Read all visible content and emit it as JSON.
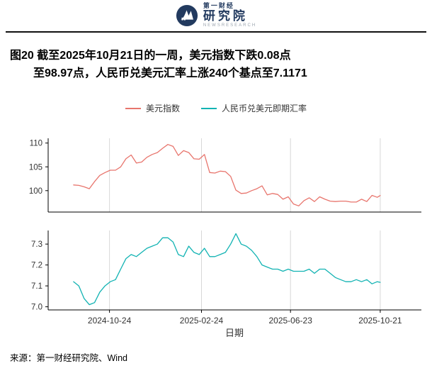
{
  "header": {
    "brand_top": "第一财经",
    "brand_main": "研究院",
    "brand_sub": "NEWSRESEARCH"
  },
  "title": {
    "line1": "图20  截至2025年10月21日的一周，美元指数下跌0.08点",
    "line2": "至98.97点，人民币兑美元汇率上涨240个基点至7.1171"
  },
  "legend": [
    {
      "label": "美元指数",
      "color": "#e8756d"
    },
    {
      "label": "人民币兑美元即期汇率",
      "color": "#12b3b3"
    }
  ],
  "footer": {
    "source": "来源：第一财经研究院、Wind"
  },
  "chart_data": {
    "type": "line",
    "title": "截至2025年10月21日的一周，美元指数下跌0.08点至98.97点，人民币兑美元汇率上涨240个基点至7.1171",
    "xlabel": "日期",
    "x_ticks": [
      "2024-10-24",
      "2025-02-24",
      "2025-06-23",
      "2025-10-21"
    ],
    "x_range": [
      "2024-08-03",
      "2025-12-15"
    ],
    "grid_color": "#d8d8d8",
    "axis_color": "#000000",
    "dates": [
      "2024-09-06",
      "2024-09-13",
      "2024-09-20",
      "2024-09-27",
      "2024-10-04",
      "2024-10-11",
      "2024-10-18",
      "2024-10-25",
      "2024-11-01",
      "2024-11-08",
      "2024-11-15",
      "2024-11-22",
      "2024-11-29",
      "2024-12-06",
      "2024-12-13",
      "2024-12-20",
      "2024-12-27",
      "2025-01-03",
      "2025-01-10",
      "2025-01-17",
      "2025-01-24",
      "2025-01-31",
      "2025-02-07",
      "2025-02-14",
      "2025-02-21",
      "2025-02-28",
      "2025-03-07",
      "2025-03-14",
      "2025-03-21",
      "2025-03-28",
      "2025-04-04",
      "2025-04-11",
      "2025-04-18",
      "2025-04-25",
      "2025-05-02",
      "2025-05-09",
      "2025-05-16",
      "2025-05-23",
      "2025-05-30",
      "2025-06-06",
      "2025-06-13",
      "2025-06-20",
      "2025-06-27",
      "2025-07-04",
      "2025-07-11",
      "2025-07-18",
      "2025-07-25",
      "2025-08-01",
      "2025-08-08",
      "2025-08-15",
      "2025-08-22",
      "2025-08-29",
      "2025-09-05",
      "2025-09-12",
      "2025-09-19",
      "2025-09-26",
      "2025-10-03",
      "2025-10-10",
      "2025-10-17",
      "2025-10-21"
    ],
    "panels": [
      {
        "name": "美元指数",
        "color": "#e8756d",
        "ylim": [
          95.5,
          111
        ],
        "y_ticks": [
          100,
          105,
          110
        ],
        "y_tick_labels": [
          "100",
          "105",
          "110"
        ],
        "values": [
          101.2,
          101.1,
          100.8,
          100.4,
          101.9,
          103.2,
          103.8,
          104.3,
          104.3,
          105.0,
          106.7,
          107.5,
          105.8,
          106.0,
          107.0,
          107.6,
          108.0,
          108.9,
          109.7,
          109.3,
          107.4,
          108.4,
          108.0,
          106.7,
          106.6,
          107.6,
          103.8,
          103.7,
          104.1,
          104.0,
          103.0,
          100.1,
          99.4,
          99.5,
          100.0,
          100.4,
          101.0,
          99.1,
          99.4,
          99.2,
          98.2,
          98.7,
          97.2,
          96.8,
          97.9,
          98.5,
          97.7,
          98.7,
          98.2,
          97.8,
          97.7,
          97.8,
          97.8,
          97.6,
          97.6,
          98.2,
          97.7,
          99.0,
          98.6,
          98.97
        ]
      },
      {
        "name": "人民币兑美元即期汇率",
        "color": "#12b3b3",
        "ylim": [
          6.985,
          7.365
        ],
        "y_ticks": [
          7.0,
          7.1,
          7.2,
          7.3
        ],
        "y_tick_labels": [
          "7.0",
          "7.1",
          "7.2",
          "7.3"
        ],
        "values": [
          7.12,
          7.1,
          7.04,
          7.01,
          7.02,
          7.07,
          7.1,
          7.12,
          7.13,
          7.18,
          7.23,
          7.25,
          7.24,
          7.26,
          7.28,
          7.29,
          7.3,
          7.33,
          7.33,
          7.31,
          7.25,
          7.24,
          7.29,
          7.26,
          7.25,
          7.28,
          7.24,
          7.24,
          7.25,
          7.26,
          7.3,
          7.35,
          7.3,
          7.29,
          7.27,
          7.24,
          7.2,
          7.19,
          7.18,
          7.18,
          7.17,
          7.18,
          7.17,
          7.17,
          7.17,
          7.18,
          7.16,
          7.18,
          7.18,
          7.16,
          7.14,
          7.13,
          7.12,
          7.12,
          7.13,
          7.12,
          7.13,
          7.11,
          7.12,
          7.1171
        ]
      }
    ]
  }
}
